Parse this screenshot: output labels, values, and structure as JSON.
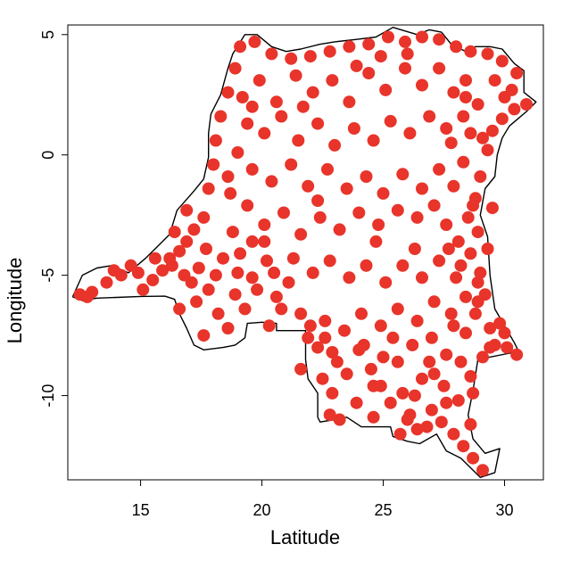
{
  "chart_data": {
    "type": "scatter",
    "title": "",
    "xlabel": "Latitude",
    "ylabel": "Longitude",
    "xlim": [
      12,
      31.6
    ],
    "ylim": [
      -13.5,
      5.4
    ],
    "xticks": [
      15,
      20,
      25,
      30
    ],
    "yticks": [
      5,
      0,
      -5,
      -10
    ],
    "grid": false,
    "colors": {
      "point": "#E8342A",
      "outline": "#000000",
      "frame": "#000000",
      "background": "#ffffff"
    },
    "outline": [
      [
        12.2,
        -5.9
      ],
      [
        12.6,
        -6.05
      ],
      [
        13.2,
        -5.95
      ],
      [
        14.0,
        -5.92
      ],
      [
        15.0,
        -5.88
      ],
      [
        16.0,
        -5.87
      ],
      [
        16.4,
        -6.0
      ],
      [
        16.6,
        -6.6
      ],
      [
        16.9,
        -7.2
      ],
      [
        17.2,
        -7.9
      ],
      [
        17.6,
        -8.1
      ],
      [
        18.4,
        -8.0
      ],
      [
        18.9,
        -7.9
      ],
      [
        19.3,
        -7.6
      ],
      [
        19.4,
        -7.0
      ],
      [
        20.0,
        -6.95
      ],
      [
        20.6,
        -7.0
      ],
      [
        20.6,
        -7.3
      ],
      [
        21.1,
        -7.3
      ],
      [
        21.8,
        -7.3
      ],
      [
        21.8,
        -8.5
      ],
      [
        21.9,
        -9.3
      ],
      [
        22.3,
        -9.9
      ],
      [
        22.3,
        -10.9
      ],
      [
        22.4,
        -11.1
      ],
      [
        23.0,
        -11.0
      ],
      [
        23.5,
        -10.9
      ],
      [
        24.1,
        -11.3
      ],
      [
        24.3,
        -11.3
      ],
      [
        25.3,
        -11.3
      ],
      [
        25.4,
        -11.7
      ],
      [
        26.0,
        -11.9
      ],
      [
        26.5,
        -12.0
      ],
      [
        27.2,
        -11.6
      ],
      [
        27.6,
        -12.3
      ],
      [
        28.2,
        -12.6
      ],
      [
        28.6,
        -13.0
      ],
      [
        29.0,
        -13.4
      ],
      [
        29.6,
        -13.2
      ],
      [
        29.8,
        -12.2
      ],
      [
        29.2,
        -12.4
      ],
      [
        28.7,
        -11.8
      ],
      [
        28.5,
        -10.8
      ],
      [
        28.7,
        -9.8
      ],
      [
        28.9,
        -8.5
      ],
      [
        30.4,
        -8.2
      ],
      [
        30.7,
        -8.4
      ],
      [
        30.4,
        -7.8
      ],
      [
        29.6,
        -6.4
      ],
      [
        29.4,
        -5.0
      ],
      [
        29.3,
        -3.4
      ],
      [
        29.0,
        -2.5
      ],
      [
        29.2,
        -1.4
      ],
      [
        29.6,
        -0.9
      ],
      [
        29.7,
        0.0
      ],
      [
        29.9,
        0.7
      ],
      [
        30.2,
        1.2
      ],
      [
        30.9,
        1.8
      ],
      [
        31.3,
        2.2
      ],
      [
        30.8,
        2.6
      ],
      [
        30.8,
        3.5
      ],
      [
        30.4,
        3.8
      ],
      [
        29.9,
        4.4
      ],
      [
        29.4,
        4.5
      ],
      [
        28.8,
        4.5
      ],
      [
        28.4,
        4.3
      ],
      [
        27.8,
        4.6
      ],
      [
        27.4,
        5.1
      ],
      [
        26.9,
        5.2
      ],
      [
        26.4,
        5.0
      ],
      [
        25.4,
        5.3
      ],
      [
        24.7,
        4.9
      ],
      [
        23.9,
        4.8
      ],
      [
        23.0,
        4.7
      ],
      [
        22.4,
        4.6
      ],
      [
        21.6,
        4.4
      ],
      [
        21.0,
        4.3
      ],
      [
        20.4,
        4.5
      ],
      [
        19.8,
        5.0
      ],
      [
        19.3,
        5.0
      ],
      [
        18.8,
        4.2
      ],
      [
        18.6,
        3.6
      ],
      [
        18.3,
        2.5
      ],
      [
        17.9,
        1.7
      ],
      [
        17.8,
        0.9
      ],
      [
        17.8,
        -0.1
      ],
      [
        17.6,
        -1.0
      ],
      [
        17.2,
        -1.5
      ],
      [
        16.5,
        -2.3
      ],
      [
        16.2,
        -3.3
      ],
      [
        15.6,
        -3.9
      ],
      [
        15.2,
        -4.3
      ],
      [
        14.5,
        -4.9
      ],
      [
        13.8,
        -4.6
      ],
      [
        13.2,
        -4.7
      ],
      [
        12.6,
        -5.0
      ],
      [
        12.2,
        -5.9
      ]
    ],
    "points": [
      [
        12.5,
        -5.8
      ],
      [
        13.0,
        -5.7
      ],
      [
        13.6,
        -5.3
      ],
      [
        14.2,
        -5.0
      ],
      [
        14.6,
        -4.6
      ],
      [
        15.1,
        -5.6
      ],
      [
        15.5,
        -5.2
      ],
      [
        15.9,
        -4.8
      ],
      [
        16.2,
        -4.3
      ],
      [
        16.6,
        -4.0
      ],
      [
        16.9,
        -3.6
      ],
      [
        16.4,
        -3.2
      ],
      [
        17.2,
        -3.1
      ],
      [
        17.6,
        -2.6
      ],
      [
        16.9,
        -2.3
      ],
      [
        17.1,
        -5.3
      ],
      [
        17.4,
        -4.7
      ],
      [
        17.7,
        -3.9
      ],
      [
        17.3,
        -6.1
      ],
      [
        17.8,
        -5.6
      ],
      [
        16.6,
        -6.4
      ],
      [
        17.6,
        -7.5
      ],
      [
        18.2,
        -6.6
      ],
      [
        18.6,
        -7.2
      ],
      [
        18.9,
        -5.8
      ],
      [
        19.3,
        -6.4
      ],
      [
        19.6,
        -5.1
      ],
      [
        18.4,
        -4.3
      ],
      [
        19.1,
        -4.1
      ],
      [
        18.8,
        -3.2
      ],
      [
        19.6,
        -3.6
      ],
      [
        20.2,
        -4.4
      ],
      [
        20.6,
        -5.9
      ],
      [
        21.1,
        -5.3
      ],
      [
        20.8,
        -6.4
      ],
      [
        21.6,
        -6.6
      ],
      [
        22.0,
        -7.1
      ],
      [
        22.6,
        -7.6
      ],
      [
        22.9,
        -8.2
      ],
      [
        22.5,
        -9.3
      ],
      [
        22.9,
        -9.9
      ],
      [
        23.5,
        -9.1
      ],
      [
        23.9,
        -10.3
      ],
      [
        22.8,
        -10.8
      ],
      [
        24.0,
        -8.1
      ],
      [
        24.5,
        -8.9
      ],
      [
        24.9,
        -9.6
      ],
      [
        25.3,
        -10.3
      ],
      [
        25.8,
        -9.9
      ],
      [
        26.1,
        -10.8
      ],
      [
        26.4,
        -11.4
      ],
      [
        27.0,
        -10.6
      ],
      [
        27.4,
        -11.1
      ],
      [
        27.9,
        -11.6
      ],
      [
        28.3,
        -12.1
      ],
      [
        28.7,
        -12.6
      ],
      [
        29.1,
        -13.1
      ],
      [
        28.6,
        -11.2
      ],
      [
        28.1,
        -10.2
      ],
      [
        27.5,
        -9.6
      ],
      [
        26.6,
        -9.3
      ],
      [
        25.6,
        -8.6
      ],
      [
        26.2,
        -7.9
      ],
      [
        27.0,
        -7.6
      ],
      [
        27.6,
        -8.3
      ],
      [
        28.2,
        -8.6
      ],
      [
        28.6,
        -9.2
      ],
      [
        29.1,
        -8.4
      ],
      [
        29.6,
        -7.9
      ],
      [
        30.1,
        -8.0
      ],
      [
        30.5,
        -8.3
      ],
      [
        29.4,
        -7.2
      ],
      [
        28.8,
        -6.6
      ],
      [
        29.2,
        -5.8
      ],
      [
        29.0,
        -4.9
      ],
      [
        28.6,
        -4.1
      ],
      [
        28.9,
        -3.2
      ],
      [
        28.5,
        -2.6
      ],
      [
        28.8,
        -1.8
      ],
      [
        29.0,
        -0.9
      ],
      [
        29.3,
        0.2
      ],
      [
        29.5,
        1.0
      ],
      [
        29.9,
        1.5
      ],
      [
        30.4,
        1.9
      ],
      [
        30.9,
        2.1
      ],
      [
        30.3,
        2.7
      ],
      [
        30.5,
        3.4
      ],
      [
        29.9,
        3.9
      ],
      [
        29.3,
        4.2
      ],
      [
        28.6,
        4.3
      ],
      [
        28.0,
        4.5
      ],
      [
        27.3,
        4.8
      ],
      [
        26.6,
        4.9
      ],
      [
        25.9,
        4.7
      ],
      [
        25.2,
        4.9
      ],
      [
        24.4,
        4.6
      ],
      [
        23.6,
        4.5
      ],
      [
        22.8,
        4.3
      ],
      [
        22.0,
        4.1
      ],
      [
        21.2,
        4.0
      ],
      [
        20.4,
        4.2
      ],
      [
        19.7,
        4.7
      ],
      [
        19.1,
        4.5
      ],
      [
        18.9,
        3.6
      ],
      [
        18.6,
        2.6
      ],
      [
        18.3,
        1.6
      ],
      [
        18.1,
        0.6
      ],
      [
        18.0,
        -0.4
      ],
      [
        17.8,
        -1.4
      ],
      [
        19.2,
        2.4
      ],
      [
        19.9,
        3.1
      ],
      [
        20.6,
        2.2
      ],
      [
        21.4,
        3.3
      ],
      [
        22.1,
        2.6
      ],
      [
        22.9,
        3.1
      ],
      [
        23.6,
        2.2
      ],
      [
        24.4,
        3.4
      ],
      [
        25.1,
        2.7
      ],
      [
        25.9,
        3.6
      ],
      [
        26.6,
        2.9
      ],
      [
        27.3,
        3.6
      ],
      [
        27.9,
        2.6
      ],
      [
        28.4,
        3.1
      ],
      [
        28.9,
        2.1
      ],
      [
        28.3,
        1.6
      ],
      [
        27.6,
        1.1
      ],
      [
        26.9,
        1.6
      ],
      [
        26.1,
        0.9
      ],
      [
        25.3,
        1.4
      ],
      [
        24.6,
        0.6
      ],
      [
        23.8,
        1.1
      ],
      [
        23.0,
        0.4
      ],
      [
        22.3,
        1.3
      ],
      [
        21.5,
        0.6
      ],
      [
        20.8,
        1.6
      ],
      [
        20.1,
        0.9
      ],
      [
        19.4,
        1.3
      ],
      [
        19.0,
        0.1
      ],
      [
        19.6,
        -0.6
      ],
      [
        20.4,
        -1.1
      ],
      [
        21.2,
        -0.4
      ],
      [
        21.9,
        -1.3
      ],
      [
        22.7,
        -0.6
      ],
      [
        23.5,
        -1.4
      ],
      [
        24.3,
        -0.9
      ],
      [
        25.0,
        -1.6
      ],
      [
        25.8,
        -0.8
      ],
      [
        26.6,
        -1.4
      ],
      [
        27.3,
        -0.6
      ],
      [
        27.9,
        -1.3
      ],
      [
        28.3,
        -0.3
      ],
      [
        27.8,
        0.5
      ],
      [
        27.1,
        -2.1
      ],
      [
        26.4,
        -2.6
      ],
      [
        25.6,
        -2.3
      ],
      [
        24.8,
        -2.9
      ],
      [
        24.0,
        -2.4
      ],
      [
        23.2,
        -3.1
      ],
      [
        22.4,
        -2.6
      ],
      [
        21.6,
        -3.3
      ],
      [
        20.9,
        -2.4
      ],
      [
        20.1,
        -2.9
      ],
      [
        19.4,
        -2.1
      ],
      [
        18.7,
        -1.6
      ],
      [
        19.0,
        -4.9
      ],
      [
        19.8,
        -5.6
      ],
      [
        20.5,
        -4.9
      ],
      [
        21.3,
        -4.3
      ],
      [
        22.1,
        -4.9
      ],
      [
        22.8,
        -4.4
      ],
      [
        23.6,
        -5.1
      ],
      [
        24.3,
        -4.6
      ],
      [
        25.1,
        -5.3
      ],
      [
        25.8,
        -4.6
      ],
      [
        26.6,
        -5.1
      ],
      [
        27.3,
        -4.4
      ],
      [
        28.0,
        -5.1
      ],
      [
        28.4,
        -5.9
      ],
      [
        27.8,
        -6.6
      ],
      [
        27.1,
        -6.1
      ],
      [
        26.4,
        -6.9
      ],
      [
        25.6,
        -6.4
      ],
      [
        24.9,
        -7.1
      ],
      [
        24.1,
        -6.6
      ],
      [
        23.4,
        -7.3
      ],
      [
        22.6,
        -6.9
      ],
      [
        21.9,
        -7.6
      ],
      [
        23.1,
        -8.6
      ],
      [
        24.6,
        -9.6
      ],
      [
        25.4,
        -7.6
      ],
      [
        26.9,
        -8.6
      ],
      [
        27.6,
        -10.3
      ],
      [
        26.0,
        -11.0
      ],
      [
        24.6,
        -10.9
      ],
      [
        23.2,
        -11.0
      ],
      [
        28.4,
        -7.4
      ],
      [
        28.1,
        -3.6
      ],
      [
        27.6,
        -2.9
      ],
      [
        28.2,
        -4.6
      ],
      [
        27.9,
        -7.1
      ],
      [
        16.3,
        -4.6
      ],
      [
        15.6,
        -4.3
      ],
      [
        14.9,
        -4.9
      ],
      [
        13.9,
        -4.8
      ],
      [
        12.8,
        -5.9
      ],
      [
        16.8,
        -5.0
      ],
      [
        18.1,
        -5.0
      ],
      [
        20.3,
        -7.1
      ],
      [
        21.6,
        -8.9
      ],
      [
        22.3,
        -8.0
      ],
      [
        24.2,
        -7.9
      ],
      [
        25.0,
        -8.4
      ],
      [
        26.3,
        -10.0
      ],
      [
        27.1,
        -9.1
      ],
      [
        28.7,
        -9.9
      ],
      [
        29.8,
        -7.0
      ],
      [
        28.9,
        -5.3
      ],
      [
        28.7,
        -2.1
      ],
      [
        29.1,
        0.7
      ],
      [
        28.6,
        0.9
      ],
      [
        28.4,
        2.4
      ],
      [
        29.6,
        3.1
      ],
      [
        30.0,
        2.4
      ],
      [
        26.0,
        4.2
      ],
      [
        24.9,
        4.1
      ],
      [
        23.9,
        3.7
      ],
      [
        21.7,
        2.0
      ],
      [
        19.6,
        2.0
      ],
      [
        18.6,
        -0.9
      ],
      [
        20.1,
        -3.6
      ],
      [
        22.3,
        -1.9
      ],
      [
        24.7,
        -3.6
      ],
      [
        26.3,
        -3.9
      ],
      [
        27.7,
        -3.9
      ],
      [
        29.3,
        -3.9
      ],
      [
        29.5,
        -2.2
      ],
      [
        28.9,
        -6.1
      ],
      [
        30.0,
        -7.4
      ],
      [
        29.4,
        -8.0
      ],
      [
        26.8,
        -11.3
      ],
      [
        25.7,
        -11.6
      ]
    ]
  }
}
